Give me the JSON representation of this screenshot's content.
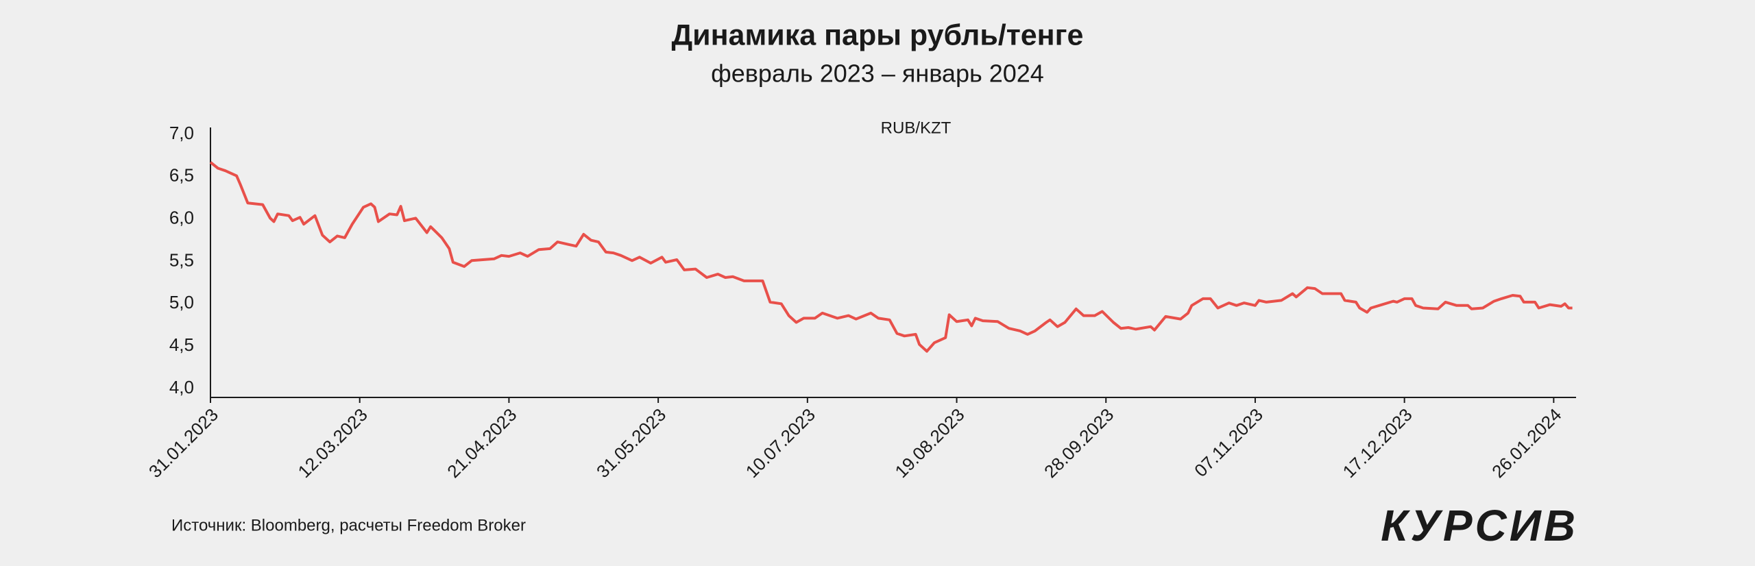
{
  "chart_data": {
    "type": "line",
    "title": "Динамика пары рубль/тенге",
    "subtitle": "февраль 2023 – январь 2024",
    "source": "Источник: Bloomberg, расчеты Freedom Broker",
    "logo": "КУРСИВ",
    "x": [
      "31.01.2023",
      "02.02.2023",
      "04.02.2023",
      "07.02.2023",
      "08.02.2023",
      "10.02.2023",
      "14.02.2023",
      "16.02.2023",
      "17.02.2023",
      "18.02.2023",
      "21.02.2023",
      "22.02.2023",
      "24.02.2023",
      "25.02.2023",
      "28.02.2023",
      "02.03.2023",
      "04.03.2023",
      "06.03.2023",
      "08.03.2023",
      "10.03.2023",
      "13.03.2023",
      "15.03.2023",
      "16.03.2023",
      "17.03.2023",
      "20.03.2023",
      "22.03.2023",
      "23.03.2023",
      "24.03.2023",
      "27.03.2023",
      "30.03.2023",
      "31.03.2023",
      "03.04.2023",
      "05.04.2023",
      "06.04.2023",
      "09.04.2023",
      "11.04.2023",
      "14.04.2023",
      "17.04.2023",
      "19.04.2023",
      "21.04.2023",
      "24.04.2023",
      "26.04.2023",
      "29.04.2023",
      "02.05.2023",
      "04.05.2023",
      "07.05.2023",
      "09.05.2023",
      "11.05.2023",
      "13.05.2023",
      "15.05.2023",
      "17.05.2023",
      "19.05.2023",
      "21.05.2023",
      "24.05.2023",
      "26.05.2023",
      "29.05.2023",
      "01.06.2023",
      "02.06.2023",
      "05.06.2023",
      "07.06.2023",
      "10.06.2023",
      "13.06.2023",
      "16.06.2023",
      "18.06.2023",
      "20.06.2023",
      "23.06.2023",
      "28.06.2023",
      "30.06.2023",
      "03.07.2023",
      "05.07.2023",
      "07.07.2023",
      "09.07.2023",
      "12.07.2023",
      "14.07.2023",
      "18.07.2023",
      "21.07.2023",
      "23.07.2023",
      "27.07.2023",
      "29.07.2023",
      "01.08.2023",
      "03.08.2023",
      "05.08.2023",
      "08.08.2023",
      "09.08.2023",
      "11.08.2023",
      "13.08.2023",
      "16.08.2023",
      "17.08.2023",
      "19.08.2023",
      "22.08.2023",
      "23.08.2023",
      "24.08.2023",
      "26.08.2023",
      "30.08.2023",
      "02.09.2023",
      "05.09.2023",
      "07.09.2023",
      "09.09.2023",
      "12.09.2023",
      "13.09.2023",
      "15.09.2023",
      "17.09.2023",
      "20.09.2023",
      "22.09.2023",
      "25.09.2023",
      "27.09.2023",
      "30.09.2023",
      "02.10.2023",
      "04.10.2023",
      "06.10.2023",
      "10.10.2023",
      "11.10.2023",
      "14.10.2023",
      "18.10.2023",
      "20.10.2023",
      "21.10.2023",
      "24.10.2023",
      "26.10.2023",
      "28.10.2023",
      "31.10.2023",
      "02.11.2023",
      "04.11.2023",
      "07.11.2023",
      "08.11.2023",
      "10.11.2023",
      "14.11.2023",
      "17.11.2023",
      "18.11.2023",
      "21.11.2023",
      "23.11.2023",
      "25.11.2023",
      "30.11.2023",
      "01.12.2023",
      "04.12.2023",
      "05.12.2023",
      "07.12.2023",
      "08.12.2023",
      "11.12.2023",
      "14.12.2023",
      "15.12.2023",
      "17.12.2023",
      "19.12.2023",
      "20.12.2023",
      "22.12.2023",
      "26.12.2023",
      "28.12.2023",
      "31.12.2023",
      "03.01.2024",
      "04.01.2024",
      "07.01.2024",
      "10.01.2024",
      "12.01.2024",
      "15.01.2024",
      "17.01.2024",
      "18.01.2024",
      "21.01.2024",
      "22.01.2024",
      "25.01.2024",
      "28.01.2024",
      "29.01.2024",
      "30.01.2024",
      "31.01.2024"
    ],
    "series": [
      {
        "name": "RUB/KZT",
        "color": "#e8504a",
        "values": [
          6.67,
          6.6,
          6.57,
          6.51,
          6.41,
          6.19,
          6.17,
          6.01,
          5.97,
          6.06,
          6.04,
          5.98,
          6.02,
          5.94,
          6.04,
          5.81,
          5.73,
          5.8,
          5.78,
          5.94,
          6.14,
          6.18,
          6.14,
          5.97,
          6.06,
          6.05,
          6.15,
          5.98,
          6.01,
          5.84,
          5.91,
          5.78,
          5.65,
          5.49,
          5.44,
          5.51,
          5.52,
          5.53,
          5.57,
          5.56,
          5.6,
          5.56,
          5.64,
          5.65,
          5.73,
          5.7,
          5.68,
          5.82,
          5.75,
          5.73,
          5.61,
          5.6,
          5.57,
          5.51,
          5.55,
          5.48,
          5.55,
          5.49,
          5.52,
          5.4,
          5.41,
          5.31,
          5.35,
          5.31,
          5.32,
          5.27,
          5.27,
          5.02,
          5.0,
          4.86,
          4.78,
          4.83,
          4.83,
          4.89,
          4.83,
          4.86,
          4.82,
          4.89,
          4.83,
          4.81,
          4.65,
          4.62,
          4.64,
          4.52,
          4.44,
          4.54,
          4.6,
          4.87,
          4.79,
          4.81,
          4.74,
          4.83,
          4.8,
          4.79,
          4.71,
          4.68,
          4.64,
          4.68,
          4.78,
          4.81,
          4.73,
          4.78,
          4.94,
          4.86,
          4.86,
          4.91,
          4.78,
          4.71,
          4.72,
          4.7,
          4.73,
          4.69,
          4.85,
          4.82,
          4.89,
          4.98,
          5.06,
          5.06,
          4.95,
          5.01,
          4.98,
          5.01,
          4.98,
          5.04,
          5.02,
          5.04,
          5.12,
          5.08,
          5.19,
          5.18,
          5.12,
          5.12,
          5.04,
          5.02,
          4.95,
          4.9,
          4.95,
          4.99,
          5.03,
          5.02,
          5.06,
          5.06,
          4.98,
          4.95,
          4.94,
          5.02,
          4.98,
          4.98,
          4.94,
          4.95,
          5.03,
          5.06,
          5.1,
          5.09,
          5.02,
          5.02,
          4.95,
          4.99,
          4.97,
          5.0,
          4.95,
          4.95
        ]
      }
    ],
    "xlim": [
      "31.01.2023",
      "01.02.2024"
    ],
    "xticks": [
      "31.01.2023",
      "12.03.2023",
      "21.04.2023",
      "31.05.2023",
      "10.07.2023",
      "19.08.2023",
      "28.09.2023",
      "07.11.2023",
      "17.12.2023",
      "26.01.2024"
    ],
    "ylim": [
      4,
      7
    ],
    "yticks": [
      {
        "value": 4,
        "label": "4,0"
      },
      {
        "value": 4.5,
        "label": "4,5"
      },
      {
        "value": 5,
        "label": "5,0"
      },
      {
        "value": 5.5,
        "label": "5,5"
      },
      {
        "value": 6,
        "label": "6,0"
      },
      {
        "value": 6.5,
        "label": "6,5"
      },
      {
        "value": 7,
        "label": "7,0"
      }
    ],
    "grid": false
  }
}
